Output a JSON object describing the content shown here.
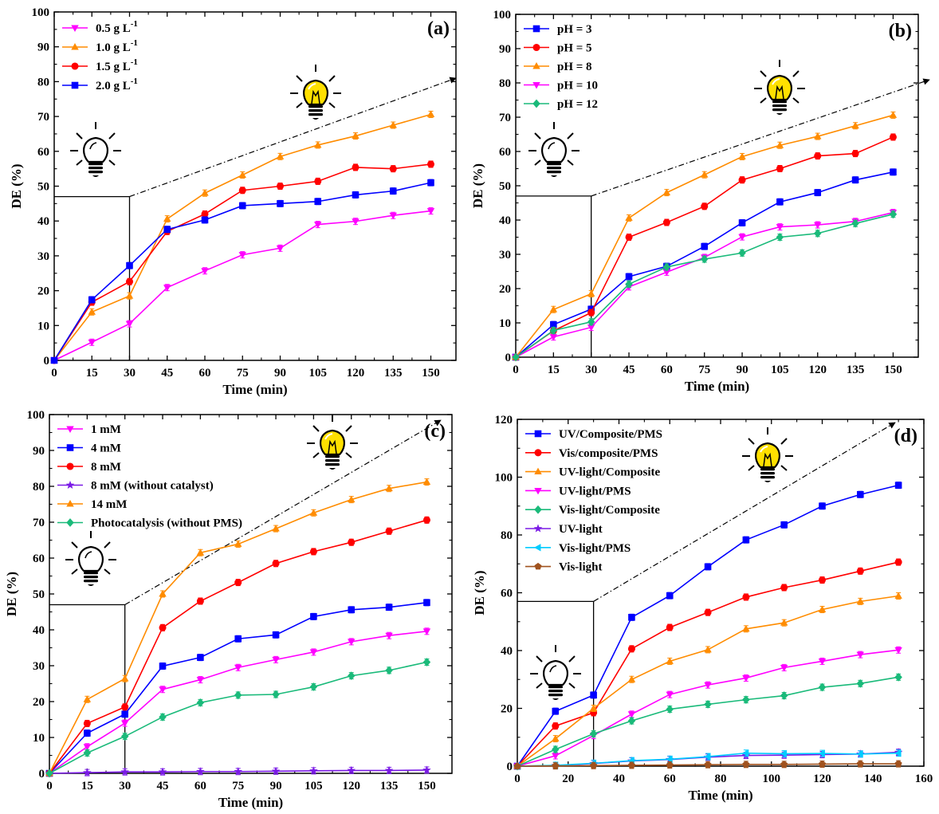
{
  "colors": {
    "pink": "#ff00ff",
    "orange": "#ff8c00",
    "red": "#ff0000",
    "blue": "#0000ff",
    "green": "#1aba7a",
    "purple": "#7a1ae6",
    "cyan": "#00ccff",
    "brown": "#a0521e",
    "bulb_yellow": "#ffe000"
  },
  "icons": [
    "light-bulb-off-icon",
    "light-bulb-on-icon"
  ],
  "chart_data": [
    {
      "type": "line",
      "panel_label": "(a)",
      "xlabel": "Time (min)",
      "ylabel": "DE (%)",
      "xlim": [
        0,
        160
      ],
      "ylim": [
        0,
        100
      ],
      "xticks": [
        0,
        15,
        30,
        45,
        60,
        75,
        90,
        105,
        120,
        135,
        150
      ],
      "yticks": [
        0,
        10,
        20,
        30,
        40,
        50,
        60,
        70,
        80,
        90,
        100
      ],
      "legend_position": "top-left",
      "light_on_at": 30,
      "light_level": 47,
      "x": [
        0,
        15,
        30,
        45,
        60,
        75,
        90,
        105,
        120,
        135,
        150
      ],
      "series": [
        {
          "name": "0.5 g L",
          "sup": "-1",
          "color": "#ff00ff",
          "marker": "triangle-down",
          "values": [
            0,
            5.2,
            10.5,
            20.9,
            25.7,
            30.3,
            32.2,
            39.0,
            39.9,
            41.6,
            42.9
          ]
        },
        {
          "name": "1.0 g L",
          "sup": "-1",
          "color": "#ff8c00",
          "marker": "triangle-up",
          "values": [
            0,
            13.9,
            18.5,
            40.6,
            48.0,
            53.2,
            58.5,
            61.8,
            64.4,
            67.5,
            70.6
          ]
        },
        {
          "name": "1.5 g L",
          "sup": "-1",
          "color": "#ff0000",
          "marker": "circle",
          "values": [
            0,
            16.7,
            22.6,
            37.0,
            42.0,
            48.8,
            50.0,
            51.4,
            55.4,
            55.0,
            56.3
          ]
        },
        {
          "name": "2.0 g L",
          "sup": "-1",
          "color": "#0000ff",
          "marker": "square",
          "values": [
            0,
            17.4,
            27.2,
            37.6,
            40.3,
            44.4,
            45.0,
            45.6,
            47.5,
            48.6,
            51.0
          ]
        }
      ]
    },
    {
      "type": "line",
      "panel_label": "(b)",
      "xlabel": "Time (min)",
      "ylabel": "DE (%)",
      "xlim": [
        0,
        160
      ],
      "ylim": [
        0,
        100
      ],
      "xticks": [
        0,
        15,
        30,
        45,
        60,
        75,
        90,
        105,
        120,
        135,
        150
      ],
      "yticks": [
        0,
        10,
        20,
        30,
        40,
        50,
        60,
        70,
        80,
        90,
        100
      ],
      "legend_position": "top-left",
      "light_on_at": 30,
      "light_level": 47,
      "x": [
        0,
        15,
        30,
        45,
        60,
        75,
        90,
        105,
        120,
        135,
        150
      ],
      "series": [
        {
          "name": "pH = 3",
          "color": "#0000ff",
          "marker": "square",
          "values": [
            0,
            9.5,
            14.0,
            23.5,
            26.5,
            32.3,
            39.2,
            45.3,
            48.0,
            51.7,
            54.0
          ]
        },
        {
          "name": "pH = 5",
          "color": "#ff0000",
          "marker": "circle",
          "values": [
            0,
            7.7,
            13.0,
            35.0,
            39.3,
            44.0,
            51.7,
            55.0,
            58.7,
            59.4,
            64.2
          ]
        },
        {
          "name": "pH = 8",
          "color": "#ff8c00",
          "marker": "triangle-up",
          "values": [
            0,
            13.9,
            18.5,
            40.6,
            48.0,
            53.2,
            58.5,
            61.8,
            64.4,
            67.5,
            70.6
          ]
        },
        {
          "name": "pH = 10",
          "color": "#ff00ff",
          "marker": "triangle-down",
          "values": [
            0,
            5.9,
            8.7,
            20.5,
            24.8,
            29.1,
            35.1,
            38.0,
            38.6,
            39.6,
            42.2
          ]
        },
        {
          "name": "pH = 12",
          "color": "#1aba7a",
          "marker": "diamond",
          "values": [
            0,
            7.8,
            10.3,
            21.3,
            26.3,
            28.6,
            30.4,
            35.0,
            36.1,
            39.0,
            41.7
          ]
        }
      ]
    },
    {
      "type": "line",
      "panel_label": "(c)",
      "xlabel": "Time (min)",
      "ylabel": "DE (%)",
      "xlim": [
        0,
        160
      ],
      "ylim": [
        0,
        100
      ],
      "xticks": [
        0,
        15,
        30,
        45,
        60,
        75,
        90,
        105,
        120,
        135,
        150
      ],
      "yticks": [
        0,
        10,
        20,
        30,
        40,
        50,
        60,
        70,
        80,
        90,
        100
      ],
      "legend_position": "top-left",
      "light_on_at": 30,
      "light_level": 47,
      "x": [
        0,
        15,
        30,
        45,
        60,
        75,
        90,
        105,
        120,
        135,
        150
      ],
      "series": [
        {
          "name": "1 mM",
          "color": "#ff00ff",
          "marker": "triangle-down",
          "values": [
            0,
            7.4,
            14.0,
            23.4,
            26.1,
            29.5,
            31.7,
            33.8,
            36.7,
            38.4,
            39.6
          ]
        },
        {
          "name": "4 mM",
          "color": "#0000ff",
          "marker": "square",
          "values": [
            0,
            11.2,
            16.5,
            29.9,
            32.3,
            37.5,
            38.6,
            43.7,
            45.6,
            46.3,
            47.6
          ]
        },
        {
          "name": "8 mM",
          "color": "#ff0000",
          "marker": "circle",
          "values": [
            0,
            13.9,
            18.5,
            40.6,
            48.0,
            53.2,
            58.5,
            61.8,
            64.4,
            67.5,
            70.6
          ]
        },
        {
          "name": "8 mM (without catalyst)",
          "color": "#7a1ae6",
          "marker": "star",
          "values": [
            0,
            0.2,
            0.4,
            0.4,
            0.5,
            0.5,
            0.6,
            0.7,
            0.8,
            0.8,
            0.9
          ]
        },
        {
          "name": "14 mM",
          "color": "#ff8c00",
          "marker": "triangle-up",
          "values": [
            0,
            20.6,
            26.4,
            50.0,
            61.5,
            63.9,
            68.2,
            72.6,
            76.3,
            79.4,
            81.2
          ]
        },
        {
          "name": "Photocatalysis (without PMS)",
          "color": "#1aba7a",
          "marker": "diamond",
          "values": [
            0,
            5.7,
            10.3,
            15.7,
            19.7,
            21.8,
            22.0,
            24.1,
            27.2,
            28.7,
            31.0
          ]
        }
      ]
    },
    {
      "type": "line",
      "panel_label": "(d)",
      "xlabel": "Time (min)",
      "ylabel": "DE (%)",
      "xlim": [
        0,
        160
      ],
      "ylim": [
        0,
        120
      ],
      "xticks": [
        0,
        20,
        40,
        60,
        80,
        100,
        120,
        140,
        160
      ],
      "yticks": [
        0,
        20,
        40,
        60,
        80,
        100,
        120
      ],
      "legend_position": "top-left",
      "light_on_at": 30,
      "light_level": 57,
      "x": [
        0,
        15,
        30,
        45,
        60,
        75,
        90,
        105,
        120,
        135,
        150
      ],
      "series": [
        {
          "name": "UV/Composite/PMS",
          "color": "#0000ff",
          "marker": "square",
          "values": [
            0,
            19.0,
            24.6,
            51.5,
            59.0,
            69.0,
            78.3,
            83.5,
            90.0,
            94.0,
            97.2
          ]
        },
        {
          "name": "Vis/composite/PMS",
          "color": "#ff0000",
          "marker": "circle",
          "values": [
            0,
            13.9,
            18.5,
            40.6,
            48.0,
            53.2,
            58.5,
            61.8,
            64.4,
            67.5,
            70.6
          ]
        },
        {
          "name": "UV-light/Composite",
          "color": "#ff8c00",
          "marker": "triangle-up",
          "values": [
            0,
            9.5,
            20.0,
            30.0,
            36.3,
            40.3,
            47.5,
            49.6,
            54.2,
            57.0,
            58.9
          ]
        },
        {
          "name": "UV-light/PMS",
          "color": "#ff00ff",
          "marker": "triangle-down",
          "values": [
            0,
            3.6,
            10.6,
            18.0,
            24.8,
            28.1,
            30.5,
            34.1,
            36.3,
            38.6,
            40.2
          ]
        },
        {
          "name": "Vis-light/Composite",
          "color": "#1aba7a",
          "marker": "diamond",
          "values": [
            0,
            5.8,
            11.2,
            15.7,
            19.7,
            21.4,
            23.0,
            24.4,
            27.3,
            28.6,
            30.8
          ]
        },
        {
          "name": "UV-light",
          "color": "#7a1ae6",
          "marker": "star",
          "values": [
            0,
            0.2,
            0.9,
            1.8,
            2.3,
            3.1,
            3.7,
            3.8,
            4.0,
            4.2,
            4.8
          ]
        },
        {
          "name": "Vis-light/PMS",
          "color": "#00ccff",
          "marker": "triangle-left",
          "values": [
            0,
            0.3,
            1.0,
            1.9,
            2.4,
            3.3,
            4.5,
            4.3,
            4.4,
            4.2,
            4.5
          ]
        },
        {
          "name": "Vis-light",
          "color": "#a0521e",
          "marker": "pentagon",
          "values": [
            0,
            0.1,
            0.2,
            0.3,
            0.4,
            0.5,
            0.6,
            0.6,
            0.7,
            0.8,
            0.8
          ]
        }
      ]
    }
  ]
}
